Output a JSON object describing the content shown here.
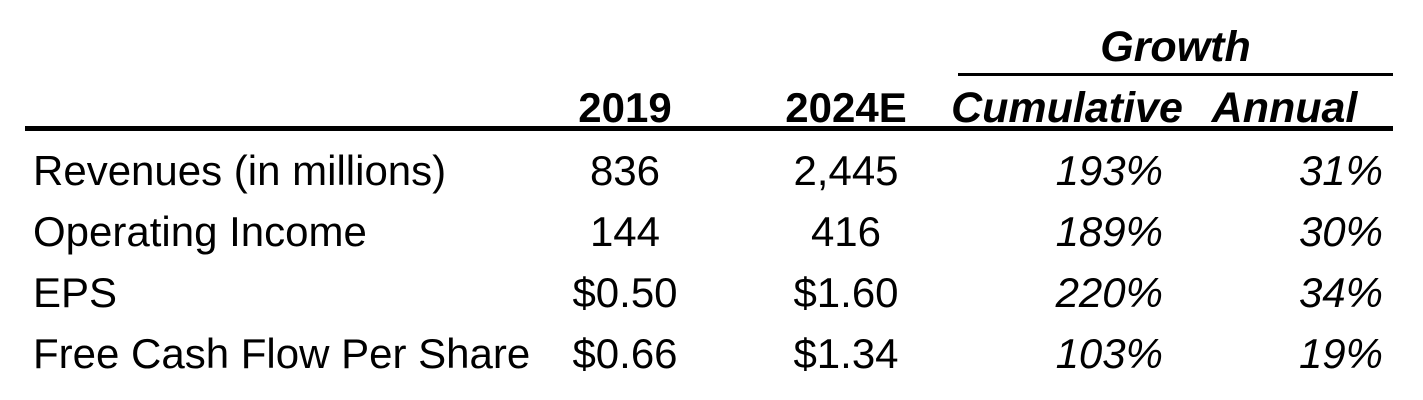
{
  "chart_data": {
    "type": "table",
    "group_header": "Growth",
    "columns": [
      "2019",
      "2024E",
      "Cumulative",
      "Annual"
    ],
    "rows": [
      [
        "Revenues (in millions)",
        "836",
        "2,445",
        "193%",
        "31%"
      ],
      [
        "Operating Income",
        "144",
        "416",
        "189%",
        "30%"
      ],
      [
        "EPS",
        "$0.50",
        "$1.60",
        "220%",
        "34%"
      ],
      [
        "Free Cash Flow Per Share",
        "$0.66",
        "$1.34",
        "103%",
        "19%"
      ]
    ]
  },
  "colors": {
    "text": "#000000",
    "background": "#ffffff",
    "rules": "#000000"
  }
}
